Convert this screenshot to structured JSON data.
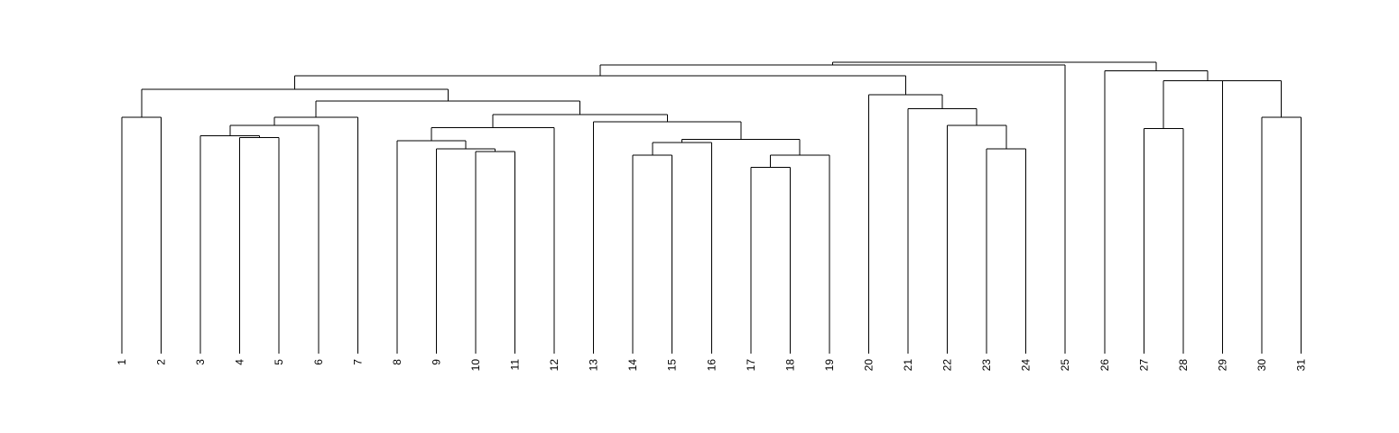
{
  "chart_data": {
    "type": "dendrogram",
    "title": "",
    "xlabel": "",
    "ylabel": "",
    "leaves": [
      "1",
      "2",
      "3",
      "4",
      "5",
      "6",
      "7",
      "8",
      "9",
      "10",
      "11",
      "12",
      "13",
      "14",
      "15",
      "16",
      "17",
      "18",
      "19",
      "20",
      "21",
      "22",
      "23",
      "24",
      "25",
      "26",
      "27",
      "28",
      "29",
      "30",
      "31"
    ],
    "height_range": [
      0,
      1
    ],
    "merges": [
      {
        "left": "L1",
        "right": "L2",
        "height": 0.818
      },
      {
        "left": "L4",
        "right": "L5",
        "height": 0.748
      },
      {
        "left": "L3",
        "right": "M2",
        "height": 0.755
      },
      {
        "left": "M3",
        "right": "L6",
        "height": 0.79
      },
      {
        "left": "M4",
        "right": "L7",
        "height": 0.818
      },
      {
        "left": "L10",
        "right": "L11",
        "height": 0.7
      },
      {
        "left": "L9",
        "right": "M6",
        "height": 0.71
      },
      {
        "left": "L8",
        "right": "M7",
        "height": 0.738
      },
      {
        "left": "M8",
        "right": "L12",
        "height": 0.783
      },
      {
        "left": "L14",
        "right": "L15",
        "height": 0.687
      },
      {
        "left": "M10",
        "right": "L16",
        "height": 0.732
      },
      {
        "left": "L17",
        "right": "L18",
        "height": 0.645
      },
      {
        "left": "M12",
        "right": "L19",
        "height": 0.687
      },
      {
        "left": "M11",
        "right": "M13",
        "height": 0.742
      },
      {
        "left": "L13",
        "right": "M14",
        "height": 0.803
      },
      {
        "left": "M9",
        "right": "M15",
        "height": 0.828
      },
      {
        "left": "M5",
        "right": "M16",
        "height": 0.875
      },
      {
        "left": "M1",
        "right": "M17",
        "height": 0.915
      },
      {
        "left": "L23",
        "right": "L24",
        "height": 0.71
      },
      {
        "left": "L22",
        "right": "M19",
        "height": 0.79
      },
      {
        "left": "L21",
        "right": "M20",
        "height": 0.848
      },
      {
        "left": "L20",
        "right": "M21",
        "height": 0.897
      },
      {
        "left": "M18",
        "right": "M22",
        "height": 0.962
      },
      {
        "left": "M23",
        "right": "L25",
        "height": 1.0
      },
      {
        "left": "L27",
        "right": "L28",
        "height": 0.78
      },
      {
        "left": "L30",
        "right": "L31",
        "height": 0.818
      },
      {
        "left": "L29",
        "right": "M26",
        "height": 0.945
      },
      {
        "left": "M25",
        "right": "M27",
        "height": 0.945
      },
      {
        "left": "L26",
        "right": "M28",
        "height": 0.98
      },
      {
        "left": "M24",
        "right": "M29",
        "height": 1.01
      }
    ]
  }
}
